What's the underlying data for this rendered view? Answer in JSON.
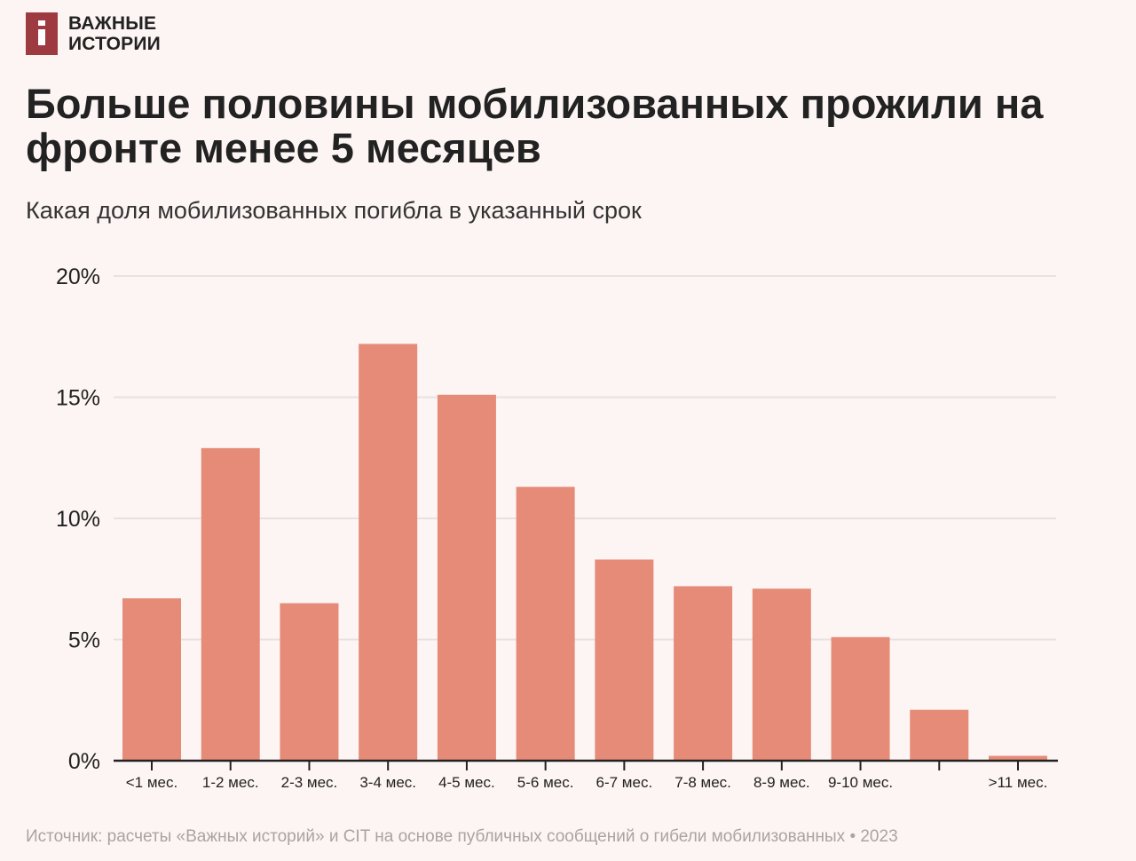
{
  "logo": {
    "text_line1": "ВАЖНЫЕ",
    "text_line2": "ИСТОРИИ",
    "color": "#9e3b40"
  },
  "title": "Больше половины мобилизованных прожили на фронте менее 5 месяцев",
  "subtitle": "Какая доля мобилизованных погибла в указанный срок",
  "source": "Источник: расчеты «Важных историй» и CIT на основе публичных сообщений о гибели мобилизованных • 2023",
  "chart_data": {
    "type": "bar",
    "categories": [
      "<1 мес.",
      "1-2 мес.",
      "2-3 мес.",
      "3-4 мес.",
      "4-5 мес.",
      "5-6 мес.",
      "6-7 мес.",
      "7-8 мес.",
      "8-9 мес.",
      "9-10 мес.",
      "",
      ">11 мес."
    ],
    "values": [
      6.7,
      12.9,
      6.5,
      17.2,
      15.1,
      11.3,
      8.3,
      7.2,
      7.1,
      5.1,
      2.1,
      0.2
    ],
    "unit": "%",
    "ylim": [
      0,
      20
    ],
    "yticks": [
      0,
      5,
      10,
      15,
      20
    ],
    "ytick_labels": [
      "0%",
      "5%",
      "10%",
      "15%",
      "20%"
    ],
    "grid": true,
    "bar_color": "#e58b78",
    "xlabel": "",
    "ylabel": ""
  }
}
